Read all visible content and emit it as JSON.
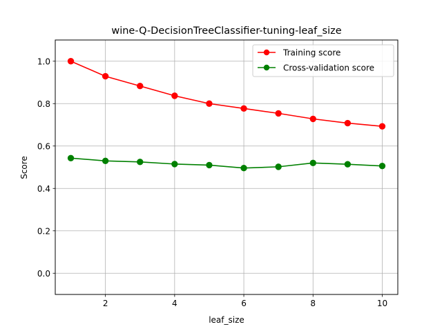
{
  "chart_data": {
    "type": "line",
    "title": "wine-Q-DecisionTreeClassifier-tuning-leaf_size",
    "xlabel": "leaf_size",
    "ylabel": "Score",
    "x": [
      1,
      2,
      3,
      4,
      5,
      6,
      7,
      8,
      9,
      10
    ],
    "xlim": [
      0.55,
      10.45
    ],
    "ylim": [
      -0.1,
      1.1
    ],
    "xticks": [
      2,
      4,
      6,
      8,
      10
    ],
    "xtick_labels": [
      "2",
      "4",
      "6",
      "8",
      "10"
    ],
    "yticks": [
      0.0,
      0.2,
      0.4,
      0.6,
      0.8,
      1.0
    ],
    "ytick_labels": [
      "0.0",
      "0.2",
      "0.4",
      "0.6",
      "0.8",
      "1.0"
    ],
    "grid": true,
    "legend_position": "top-right",
    "series": [
      {
        "name": "Training score",
        "color": "#ff0000",
        "marker": "circle",
        "values": [
          1.0,
          0.929,
          0.883,
          0.837,
          0.8,
          0.777,
          0.754,
          0.728,
          0.708,
          0.693
        ]
      },
      {
        "name": "Cross-validation score",
        "color": "#008000",
        "marker": "circle",
        "values": [
          0.543,
          0.53,
          0.525,
          0.515,
          0.51,
          0.496,
          0.502,
          0.52,
          0.514,
          0.506
        ]
      }
    ]
  }
}
